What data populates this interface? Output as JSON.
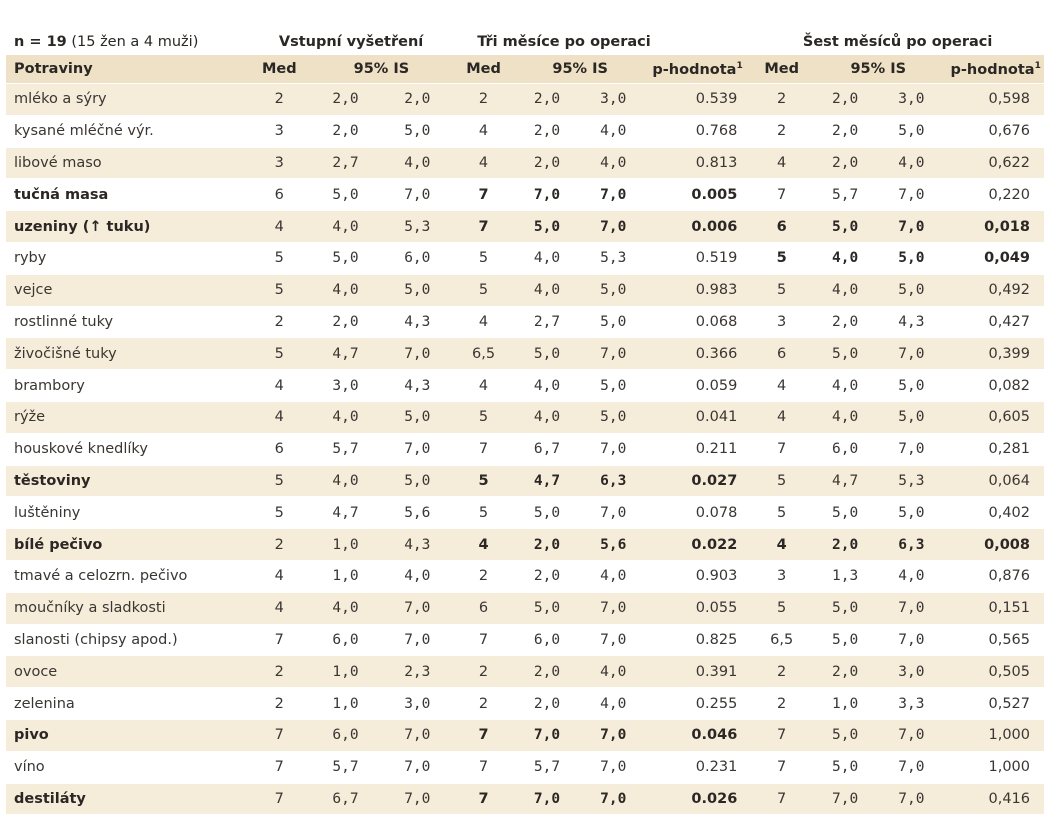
{
  "header": {
    "n_label": "n = 19",
    "n_detail": "(15 žen a 4 muži)",
    "group_baseline": "Vstupní vyšetření",
    "group_3m": "Tři měsíce po operaci",
    "group_6m": "Šest měsíců po operaci"
  },
  "columns": {
    "food": "Potraviny",
    "med": "Med",
    "ci": "95% IS",
    "pval": "p-hodnota",
    "pval_sup": "1"
  },
  "rows": [
    {
      "food": "mléko a sýry",
      "bold": false,
      "b_med": "2",
      "b_lo": "2,0",
      "b_hi": "2,0",
      "m3_med": "2",
      "m3_lo": "2,0",
      "m3_hi": "3,0",
      "m3_p": "0.539",
      "m6_med": "2",
      "m6_lo": "2,0",
      "m6_hi": "3,0",
      "m6_p": "0,598"
    },
    {
      "food": "kysané mléčné výr.",
      "bold": false,
      "b_med": "3",
      "b_lo": "2,0",
      "b_hi": "5,0",
      "m3_med": "4",
      "m3_lo": "2,0",
      "m3_hi": "4,0",
      "m3_p": "0.768",
      "m6_med": "2",
      "m6_lo": "2,0",
      "m6_hi": "5,0",
      "m6_p": "0,676"
    },
    {
      "food": "libové maso",
      "bold": false,
      "b_med": "3",
      "b_lo": "2,7",
      "b_hi": "4,0",
      "m3_med": "4",
      "m3_lo": "2,0",
      "m3_hi": "4,0",
      "m3_p": "0.813",
      "m6_med": "4",
      "m6_lo": "2,0",
      "m6_hi": "4,0",
      "m6_p": "0,622"
    },
    {
      "food": "tučná masa",
      "bold": "partial3",
      "b_med": "6",
      "b_lo": "5,0",
      "b_hi": "7,0",
      "m3_med": "7",
      "m3_lo": "7,0",
      "m3_hi": "7,0",
      "m3_p": "0.005",
      "m6_med": "7",
      "m6_lo": "5,7",
      "m6_hi": "7,0",
      "m6_p": "0,220"
    },
    {
      "food": "uzeniny (",
      "food_arrow": "↑",
      "food_tail": " tuku)",
      "bold": "partial36",
      "b_med": "4",
      "b_lo": "4,0",
      "b_hi": "5,3",
      "m3_med": "7",
      "m3_lo": "5,0",
      "m3_hi": "7,0",
      "m3_p": "0.006",
      "m6_med": "6",
      "m6_lo": "5,0",
      "m6_hi": "7,0",
      "m6_p": "0,018"
    },
    {
      "food": "ryby",
      "bold": "partial6",
      "b_med": "5",
      "b_lo": "5,0",
      "b_hi": "6,0",
      "m3_med": "5",
      "m3_lo": "4,0",
      "m3_hi": "5,3",
      "m3_p": "0.519",
      "m6_med": "5",
      "m6_lo": "4,0",
      "m6_hi": "5,0",
      "m6_p": "0,049"
    },
    {
      "food": "vejce",
      "bold": false,
      "b_med": "5",
      "b_lo": "4,0",
      "b_hi": "5,0",
      "m3_med": "5",
      "m3_lo": "4,0",
      "m3_hi": "5,0",
      "m3_p": "0.983",
      "m6_med": "5",
      "m6_lo": "4,0",
      "m6_hi": "5,0",
      "m6_p": "0,492"
    },
    {
      "food": "rostlinné tuky",
      "bold": false,
      "b_med": "2",
      "b_lo": "2,0",
      "b_hi": "4,3",
      "m3_med": "4",
      "m3_lo": "2,7",
      "m3_hi": "5,0",
      "m3_p": "0.068",
      "m6_med": "3",
      "m6_lo": "2,0",
      "m6_hi": "4,3",
      "m6_p": "0,427"
    },
    {
      "food": "živočišné tuky",
      "bold": false,
      "b_med": "5",
      "b_lo": "4,7",
      "b_hi": "7,0",
      "m3_med": "6,5",
      "m3_lo": "5,0",
      "m3_hi": "7,0",
      "m3_p": "0.366",
      "m6_med": "6",
      "m6_lo": "5,0",
      "m6_hi": "7,0",
      "m6_p": "0,399"
    },
    {
      "food": "brambory",
      "bold": false,
      "b_med": "4",
      "b_lo": "3,0",
      "b_hi": "4,3",
      "m3_med": "4",
      "m3_lo": "4,0",
      "m3_hi": "5,0",
      "m3_p": "0.059",
      "m6_med": "4",
      "m6_lo": "4,0",
      "m6_hi": "5,0",
      "m6_p": "0,082"
    },
    {
      "food": "rýže",
      "bold": false,
      "b_med": "4",
      "b_lo": "4,0",
      "b_hi": "5,0",
      "m3_med": "5",
      "m3_lo": "4,0",
      "m3_hi": "5,0",
      "m3_p": "0.041",
      "m6_med": "4",
      "m6_lo": "4,0",
      "m6_hi": "5,0",
      "m6_p": "0,605"
    },
    {
      "food": "houskové knedlíky",
      "bold": false,
      "b_med": "6",
      "b_lo": "5,7",
      "b_hi": "7,0",
      "m3_med": "7",
      "m3_lo": "6,7",
      "m3_hi": "7,0",
      "m3_p": "0.211",
      "m6_med": "7",
      "m6_lo": "6,0",
      "m6_hi": "7,0",
      "m6_p": "0,281"
    },
    {
      "food": "těstoviny",
      "bold": "partial3",
      "b_med": "5",
      "b_lo": "4,0",
      "b_hi": "5,0",
      "m3_med": "5",
      "m3_lo": "4,7",
      "m3_hi": "6,3",
      "m3_p": "0.027",
      "m6_med": "5",
      "m6_lo": "4,7",
      "m6_hi": "5,3",
      "m6_p": "0,064"
    },
    {
      "food": "luštěniny",
      "bold": false,
      "b_med": "5",
      "b_lo": "4,7",
      "b_hi": "5,6",
      "m3_med": "5",
      "m3_lo": "5,0",
      "m3_hi": "7,0",
      "m3_p": "0.078",
      "m6_med": "5",
      "m6_lo": "5,0",
      "m6_hi": "5,0",
      "m6_p": "0,402"
    },
    {
      "food": "bílé pečivo",
      "bold": "partial36",
      "b_med": "2",
      "b_lo": "1,0",
      "b_hi": "4,3",
      "m3_med": "4",
      "m3_lo": "2,0",
      "m3_hi": "5,6",
      "m3_p": "0.022",
      "m6_med": "4",
      "m6_lo": "2,0",
      "m6_hi": "6,3",
      "m6_p": "0,008"
    },
    {
      "food": "tmavé a celozrn. pečivo",
      "bold": false,
      "b_med": "4",
      "b_lo": "1,0",
      "b_hi": "4,0",
      "m3_med": "2",
      "m3_lo": "2,0",
      "m3_hi": "4,0",
      "m3_p": "0.903",
      "m6_med": "3",
      "m6_lo": "1,3",
      "m6_hi": "4,0",
      "m6_p": "0,876"
    },
    {
      "food": "moučníky a sladkosti",
      "bold": false,
      "b_med": "4",
      "b_lo": "4,0",
      "b_hi": "7,0",
      "m3_med": "6",
      "m3_lo": "5,0",
      "m3_hi": "7,0",
      "m3_p": "0.055",
      "m6_med": "5",
      "m6_lo": "5,0",
      "m6_hi": "7,0",
      "m6_p": "0,151"
    },
    {
      "food": "slanosti (chipsy apod.)",
      "bold": false,
      "b_med": "7",
      "b_lo": "6,0",
      "b_hi": "7,0",
      "m3_med": "7",
      "m3_lo": "6,0",
      "m3_hi": "7,0",
      "m3_p": "0.825",
      "m6_med": "6,5",
      "m6_lo": "5,0",
      "m6_hi": "7,0",
      "m6_p": "0,565"
    },
    {
      "food": "ovoce",
      "bold": false,
      "b_med": "2",
      "b_lo": "1,0",
      "b_hi": "2,3",
      "m3_med": "2",
      "m3_lo": "2,0",
      "m3_hi": "4,0",
      "m3_p": "0.391",
      "m6_med": "2",
      "m6_lo": "2,0",
      "m6_hi": "3,0",
      "m6_p": "0,505"
    },
    {
      "food": "zelenina",
      "bold": false,
      "b_med": "2",
      "b_lo": "1,0",
      "b_hi": "3,0",
      "m3_med": "2",
      "m3_lo": "2,0",
      "m3_hi": "4,0",
      "m3_p": "0.255",
      "m6_med": "2",
      "m6_lo": "1,0",
      "m6_hi": "3,3",
      "m6_p": "0,527"
    },
    {
      "food": "pivo",
      "bold": "partial3",
      "b_med": "7",
      "b_lo": "6,0",
      "b_hi": "7,0",
      "m3_med": "7",
      "m3_lo": "7,0",
      "m3_hi": "7,0",
      "m3_p": "0.046",
      "m6_med": "7",
      "m6_lo": "5,0",
      "m6_hi": "7,0",
      "m6_p": "1,000"
    },
    {
      "food": "víno",
      "bold": false,
      "b_med": "7",
      "b_lo": "5,7",
      "b_hi": "7,0",
      "m3_med": "7",
      "m3_lo": "5,7",
      "m3_hi": "7,0",
      "m3_p": "0.231",
      "m6_med": "7",
      "m6_lo": "5,0",
      "m6_hi": "7,0",
      "m6_p": "1,000"
    },
    {
      "food": "destiláty",
      "bold": "partial3",
      "b_med": "7",
      "b_lo": "6,7",
      "b_hi": "7,0",
      "m3_med": "7",
      "m3_lo": "7,0",
      "m3_hi": "7,0",
      "m3_p": "0.026",
      "m6_med": "7",
      "m6_lo": "7,0",
      "m6_hi": "7,0",
      "m6_p": "0,416"
    }
  ]
}
